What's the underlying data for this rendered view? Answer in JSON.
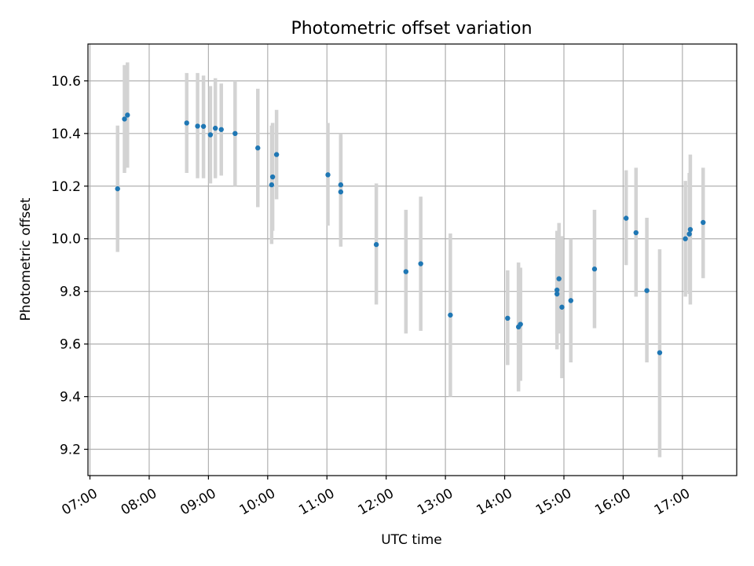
{
  "chart_data": {
    "type": "scatter",
    "title": "Photometric offset variation",
    "xlabel": "UTC time",
    "ylabel": "Photometric offset",
    "grid": true,
    "colors": {
      "points": "#1f77b4",
      "errorbars": "#d3d3d3"
    },
    "x_ticks": [
      "07:00",
      "08:00",
      "09:00",
      "10:00",
      "11:00",
      "12:00",
      "13:00",
      "14:00",
      "15:00",
      "16:00",
      "17:00"
    ],
    "y_ticks": [
      "9.2",
      "9.4",
      "9.6",
      "9.8",
      "10.0",
      "10.2",
      "10.4",
      "10.6"
    ],
    "xlim": [
      "06:58",
      "17:55"
    ],
    "ylim": [
      9.1,
      10.74
    ],
    "points": [
      {
        "t": "07:28",
        "y": 10.19,
        "lo": 9.95,
        "hi": 10.43
      },
      {
        "t": "07:35",
        "y": 10.455,
        "lo": 10.25,
        "hi": 10.66
      },
      {
        "t": "07:38",
        "y": 10.47,
        "lo": 10.27,
        "hi": 10.67
      },
      {
        "t": "08:38",
        "y": 10.44,
        "lo": 10.25,
        "hi": 10.63
      },
      {
        "t": "08:49",
        "y": 10.428,
        "lo": 10.23,
        "hi": 10.63
      },
      {
        "t": "08:55",
        "y": 10.427,
        "lo": 10.23,
        "hi": 10.62
      },
      {
        "t": "09:02",
        "y": 10.395,
        "lo": 10.21,
        "hi": 10.58
      },
      {
        "t": "09:07",
        "y": 10.42,
        "lo": 10.23,
        "hi": 10.61
      },
      {
        "t": "09:13",
        "y": 10.415,
        "lo": 10.24,
        "hi": 10.59
      },
      {
        "t": "09:27",
        "y": 10.4,
        "lo": 10.2,
        "hi": 10.6
      },
      {
        "t": "09:50",
        "y": 10.345,
        "lo": 10.12,
        "hi": 10.57
      },
      {
        "t": "10:04",
        "y": 10.205,
        "lo": 9.98,
        "hi": 10.43
      },
      {
        "t": "10:05",
        "y": 10.235,
        "lo": 10.03,
        "hi": 10.44
      },
      {
        "t": "10:09",
        "y": 10.32,
        "lo": 10.15,
        "hi": 10.49
      },
      {
        "t": "11:01",
        "y": 10.243,
        "lo": 10.05,
        "hi": 10.44
      },
      {
        "t": "11:14",
        "y": 10.205,
        "lo": 10.01,
        "hi": 10.4
      },
      {
        "t": "11:14",
        "y": 10.178,
        "lo": 9.97,
        "hi": 10.39
      },
      {
        "t": "11:50",
        "y": 9.978,
        "lo": 9.75,
        "hi": 10.21
      },
      {
        "t": "12:20",
        "y": 9.875,
        "lo": 9.64,
        "hi": 10.11
      },
      {
        "t": "12:35",
        "y": 9.905,
        "lo": 9.65,
        "hi": 10.16
      },
      {
        "t": "13:05",
        "y": 9.71,
        "lo": 9.4,
        "hi": 10.02
      },
      {
        "t": "14:03",
        "y": 9.698,
        "lo": 9.52,
        "hi": 9.88
      },
      {
        "t": "14:14",
        "y": 9.665,
        "lo": 9.42,
        "hi": 9.91
      },
      {
        "t": "14:16",
        "y": 9.675,
        "lo": 9.46,
        "hi": 9.89
      },
      {
        "t": "14:53",
        "y": 9.805,
        "lo": 9.58,
        "hi": 10.03
      },
      {
        "t": "14:53",
        "y": 9.79,
        "lo": 9.64,
        "hi": 9.94
      },
      {
        "t": "14:55",
        "y": 9.848,
        "lo": 9.64,
        "hi": 10.06
      },
      {
        "t": "14:58",
        "y": 9.74,
        "lo": 9.47,
        "hi": 10.01
      },
      {
        "t": "15:07",
        "y": 9.765,
        "lo": 9.53,
        "hi": 10.0
      },
      {
        "t": "15:31",
        "y": 9.885,
        "lo": 9.66,
        "hi": 10.11
      },
      {
        "t": "16:03",
        "y": 10.078,
        "lo": 9.9,
        "hi": 10.26
      },
      {
        "t": "16:13",
        "y": 10.023,
        "lo": 9.78,
        "hi": 10.27
      },
      {
        "t": "16:24",
        "y": 9.803,
        "lo": 9.53,
        "hi": 10.08
      },
      {
        "t": "16:37",
        "y": 9.567,
        "lo": 9.17,
        "hi": 9.96
      },
      {
        "t": "17:03",
        "y": 10.0,
        "lo": 9.78,
        "hi": 10.22
      },
      {
        "t": "17:07",
        "y": 10.018,
        "lo": 9.79,
        "hi": 10.25
      },
      {
        "t": "17:08",
        "y": 10.035,
        "lo": 9.75,
        "hi": 10.32
      },
      {
        "t": "17:21",
        "y": 10.062,
        "lo": 9.85,
        "hi": 10.27
      }
    ]
  }
}
